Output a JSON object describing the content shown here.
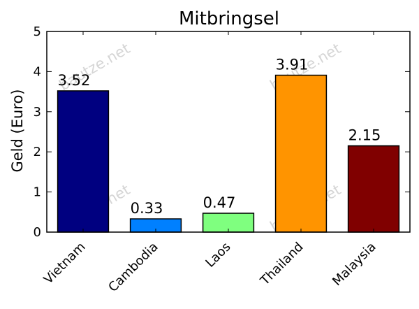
{
  "chart_data": {
    "type": "bar",
    "title": "Mitbringsel",
    "xlabel": "",
    "ylabel": "Geld (Euro)",
    "categories": [
      "Vietnam",
      "Cambodia",
      "Laos",
      "Thailand",
      "Malaysia"
    ],
    "values": [
      3.52,
      0.33,
      0.47,
      3.91,
      2.15
    ],
    "value_labels": [
      "3.52",
      "0.33",
      "0.47",
      "3.91",
      "2.15"
    ],
    "colors": [
      "#000080",
      "#0080ff",
      "#7fff7f",
      "#ff9400",
      "#800000"
    ],
    "ylim": [
      0,
      5
    ],
    "yticks": [
      0,
      1,
      2,
      3,
      4,
      5
    ],
    "ytick_labels": [
      "0",
      "1",
      "2",
      "3",
      "4",
      "5"
    ],
    "grid": false,
    "legend": "none"
  },
  "watermark": {
    "text": "bautze.net"
  }
}
